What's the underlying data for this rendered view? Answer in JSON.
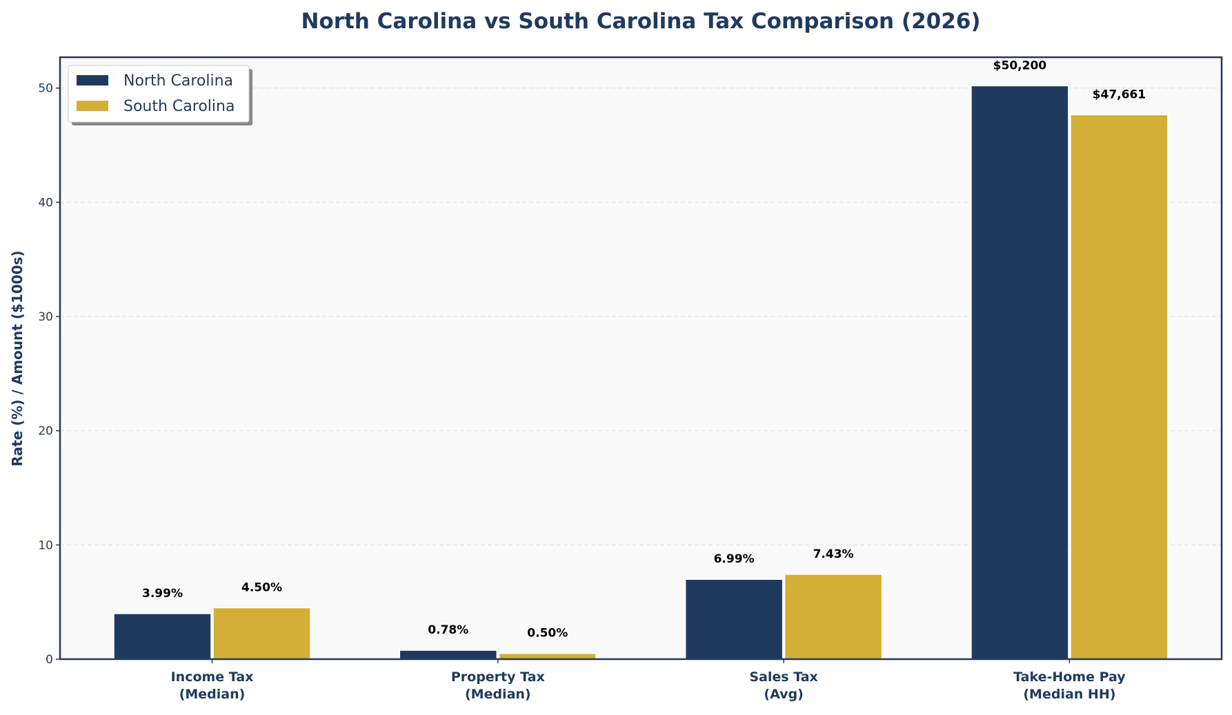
{
  "chart_data": {
    "type": "bar",
    "title": "North Carolina vs South Carolina Tax Comparison (2026)",
    "xlabel": "",
    "ylabel": "Rate (%) / Amount ($1000s)",
    "categories": [
      [
        "Income Tax",
        "(Median)"
      ],
      [
        "Property Tax",
        "(Median)"
      ],
      [
        "Sales Tax",
        "(Avg)"
      ],
      [
        "Take-Home Pay",
        "(Median HH)"
      ]
    ],
    "series": [
      {
        "name": "North Carolina",
        "color": "#1f3a5f",
        "values": [
          3.99,
          0.78,
          6.99,
          50.2
        ],
        "labels": [
          "3.99%",
          "0.78%",
          "6.99%",
          "$50,200"
        ]
      },
      {
        "name": "South Carolina",
        "color": "#d4af37",
        "values": [
          4.5,
          0.5,
          7.43,
          47.661
        ],
        "labels": [
          "4.50%",
          "0.50%",
          "7.43%",
          "$47,661"
        ]
      }
    ],
    "ylim": [
      0,
      52.7
    ],
    "yticks": [
      0,
      10,
      20,
      30,
      40,
      50
    ],
    "grid": "horizontal dashed",
    "legend_position": "top-left",
    "background": "#f9f9f9",
    "frame_color": "#1f3a5f"
  }
}
